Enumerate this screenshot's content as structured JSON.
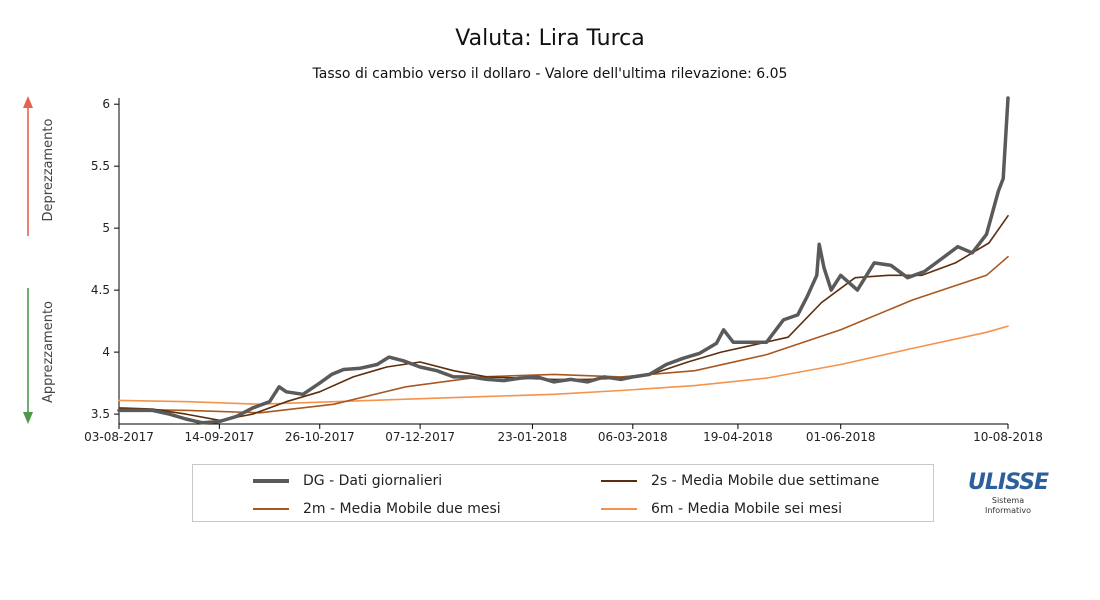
{
  "header": {
    "title": "Valuta: Lira Turca",
    "subtitle": "Tasso di cambio verso il dollaro - Valore dell'ultima rilevazione: 6.05"
  },
  "side_labels": {
    "top": "Deprezzamento",
    "bottom": "Apprezzamento"
  },
  "legend": {
    "items": [
      {
        "label": "DG - Dati giornalieri",
        "color": "#5a5a5a"
      },
      {
        "label": "2s - Media Mobile due settimane",
        "color": "#5c2e0e"
      },
      {
        "label": "2m - Media Mobile due mesi",
        "color": "#a8581f"
      },
      {
        "label": "6m - Media Mobile sei mesi",
        "color": "#f5934a"
      }
    ]
  },
  "logo": {
    "name": "ULISSE",
    "line1": "Sistema",
    "line2": "Informativo"
  },
  "colors": {
    "up_arrow": "#e8614f",
    "down_arrow": "#4a9a4a",
    "axis": "#000000"
  },
  "chart_data": {
    "type": "line",
    "title": "Valuta: Lira Turca",
    "subtitle": "Tasso di cambio verso il dollaro - Valore dell'ultima rilevazione: 6.05",
    "xlabel": "",
    "ylabel": "",
    "ylim": [
      3.42,
      6.05
    ],
    "yticks": [
      3.5,
      4,
      4.5,
      5,
      5.5,
      6
    ],
    "ytick_labels": [
      "3.5",
      "4",
      "4.5",
      "5",
      "5.5",
      "6"
    ],
    "xlim": [
      "2017-08-03",
      "2018-08-10"
    ],
    "xticks": [
      "2017-08-03",
      "2017-09-14",
      "2017-10-26",
      "2017-12-07",
      "2018-01-23",
      "2018-03-06",
      "2018-04-19",
      "2018-06-01",
      "2018-08-10"
    ],
    "xtick_labels": [
      "03-08-2017",
      "14-09-2017",
      "26-10-2017",
      "07-12-2017",
      "23-01-2018",
      "06-03-2018",
      "19-04-2018",
      "01-06-2018",
      "10-08-2018"
    ],
    "grid": false,
    "legend_position": "bottom",
    "series": [
      {
        "name": "DG - Dati giornalieri",
        "color": "#5a5a5a",
        "width": 3.5,
        "points": [
          [
            "2017-08-03",
            3.53
          ],
          [
            "2017-08-10",
            3.53
          ],
          [
            "2017-08-17",
            3.53
          ],
          [
            "2017-08-24",
            3.5
          ],
          [
            "2017-08-31",
            3.46
          ],
          [
            "2017-09-07",
            3.43
          ],
          [
            "2017-09-14",
            3.44
          ],
          [
            "2017-09-21",
            3.48
          ],
          [
            "2017-09-28",
            3.55
          ],
          [
            "2017-10-05",
            3.6
          ],
          [
            "2017-10-09",
            3.72
          ],
          [
            "2017-10-12",
            3.68
          ],
          [
            "2017-10-19",
            3.66
          ],
          [
            "2017-10-26",
            3.75
          ],
          [
            "2017-10-31",
            3.82
          ],
          [
            "2017-11-05",
            3.86
          ],
          [
            "2017-11-12",
            3.87
          ],
          [
            "2017-11-19",
            3.9
          ],
          [
            "2017-11-24",
            3.96
          ],
          [
            "2017-11-30",
            3.93
          ],
          [
            "2017-12-07",
            3.88
          ],
          [
            "2017-12-14",
            3.85
          ],
          [
            "2017-12-21",
            3.8
          ],
          [
            "2017-12-28",
            3.8
          ],
          [
            "2018-01-04",
            3.78
          ],
          [
            "2018-01-11",
            3.77
          ],
          [
            "2018-01-18",
            3.79
          ],
          [
            "2018-01-25",
            3.8
          ],
          [
            "2018-02-01",
            3.76
          ],
          [
            "2018-02-08",
            3.78
          ],
          [
            "2018-02-15",
            3.76
          ],
          [
            "2018-02-22",
            3.8
          ],
          [
            "2018-03-01",
            3.78
          ],
          [
            "2018-03-06",
            3.8
          ],
          [
            "2018-03-13",
            3.82
          ],
          [
            "2018-03-20",
            3.9
          ],
          [
            "2018-03-27",
            3.95
          ],
          [
            "2018-04-03",
            3.99
          ],
          [
            "2018-04-10",
            4.07
          ],
          [
            "2018-04-13",
            4.18
          ],
          [
            "2018-04-17",
            4.08
          ],
          [
            "2018-04-24",
            4.08
          ],
          [
            "2018-05-01",
            4.08
          ],
          [
            "2018-05-08",
            4.26
          ],
          [
            "2018-05-14",
            4.3
          ],
          [
            "2018-05-18",
            4.45
          ],
          [
            "2018-05-22",
            4.62
          ],
          [
            "2018-05-23",
            4.87
          ],
          [
            "2018-05-25",
            4.68
          ],
          [
            "2018-05-28",
            4.5
          ],
          [
            "2018-06-01",
            4.62
          ],
          [
            "2018-06-08",
            4.5
          ],
          [
            "2018-06-15",
            4.72
          ],
          [
            "2018-06-22",
            4.7
          ],
          [
            "2018-06-29",
            4.6
          ],
          [
            "2018-07-06",
            4.65
          ],
          [
            "2018-07-13",
            4.75
          ],
          [
            "2018-07-20",
            4.85
          ],
          [
            "2018-07-26",
            4.8
          ],
          [
            "2018-08-01",
            4.95
          ],
          [
            "2018-08-06",
            5.3
          ],
          [
            "2018-08-08",
            5.4
          ],
          [
            "2018-08-10",
            6.05
          ]
        ]
      },
      {
        "name": "2s - Media Mobile due settimane",
        "color": "#5c2e0e",
        "width": 1.6,
        "points": [
          [
            "2017-08-03",
            3.55
          ],
          [
            "2017-08-17",
            3.54
          ],
          [
            "2017-08-31",
            3.5
          ],
          [
            "2017-09-14",
            3.45
          ],
          [
            "2017-09-28",
            3.5
          ],
          [
            "2017-10-12",
            3.6
          ],
          [
            "2017-10-26",
            3.68
          ],
          [
            "2017-11-09",
            3.8
          ],
          [
            "2017-11-23",
            3.88
          ],
          [
            "2017-12-07",
            3.92
          ],
          [
            "2017-12-21",
            3.85
          ],
          [
            "2018-01-04",
            3.8
          ],
          [
            "2018-01-18",
            3.79
          ],
          [
            "2018-02-01",
            3.78
          ],
          [
            "2018-02-15",
            3.78
          ],
          [
            "2018-03-01",
            3.79
          ],
          [
            "2018-03-15",
            3.83
          ],
          [
            "2018-03-29",
            3.92
          ],
          [
            "2018-04-12",
            4.0
          ],
          [
            "2018-04-26",
            4.06
          ],
          [
            "2018-05-10",
            4.12
          ],
          [
            "2018-05-24",
            4.4
          ],
          [
            "2018-06-07",
            4.6
          ],
          [
            "2018-06-21",
            4.62
          ],
          [
            "2018-07-05",
            4.62
          ],
          [
            "2018-07-19",
            4.72
          ],
          [
            "2018-08-02",
            4.88
          ],
          [
            "2018-08-10",
            5.1
          ]
        ]
      },
      {
        "name": "2m - Media Mobile due mesi",
        "color": "#a8581f",
        "width": 1.6,
        "points": [
          [
            "2017-08-03",
            3.54
          ],
          [
            "2017-09-01",
            3.53
          ],
          [
            "2017-10-01",
            3.51
          ],
          [
            "2017-11-01",
            3.58
          ],
          [
            "2017-12-01",
            3.72
          ],
          [
            "2018-01-01",
            3.8
          ],
          [
            "2018-02-01",
            3.82
          ],
          [
            "2018-03-01",
            3.8
          ],
          [
            "2018-04-01",
            3.85
          ],
          [
            "2018-05-01",
            3.98
          ],
          [
            "2018-06-01",
            4.18
          ],
          [
            "2018-07-01",
            4.42
          ],
          [
            "2018-08-01",
            4.62
          ],
          [
            "2018-08-10",
            4.77
          ]
        ]
      },
      {
        "name": "6m - Media Mobile sei mesi",
        "color": "#f5934a",
        "width": 1.6,
        "points": [
          [
            "2017-08-03",
            3.61
          ],
          [
            "2017-09-01",
            3.6
          ],
          [
            "2017-10-01",
            3.58
          ],
          [
            "2017-11-01",
            3.6
          ],
          [
            "2017-12-01",
            3.62
          ],
          [
            "2018-01-01",
            3.64
          ],
          [
            "2018-02-01",
            3.66
          ],
          [
            "2018-03-01",
            3.69
          ],
          [
            "2018-04-01",
            3.73
          ],
          [
            "2018-05-01",
            3.79
          ],
          [
            "2018-06-01",
            3.9
          ],
          [
            "2018-07-01",
            4.03
          ],
          [
            "2018-08-01",
            4.16
          ],
          [
            "2018-08-10",
            4.21
          ]
        ]
      }
    ]
  }
}
